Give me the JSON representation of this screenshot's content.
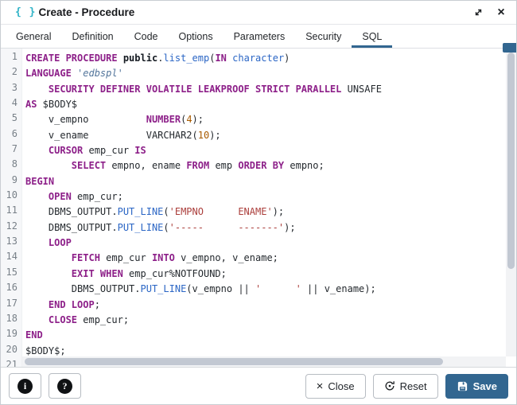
{
  "window": {
    "title": "Create - Procedure",
    "title_icon_glyph": "{ }",
    "close_icon_glyph": "×"
  },
  "tabs": {
    "active": "SQL",
    "items": [
      {
        "label": "General"
      },
      {
        "label": "Definition"
      },
      {
        "label": "Code"
      },
      {
        "label": "Options"
      },
      {
        "label": "Parameters"
      },
      {
        "label": "Security"
      },
      {
        "label": "SQL"
      }
    ]
  },
  "editor": {
    "language": "SQL",
    "lines": [
      {
        "n": 1,
        "seg": [
          [
            "kw",
            "CREATE PROCEDURE "
          ],
          [
            "def",
            "public"
          ],
          [
            "txt",
            "."
          ],
          [
            "fn",
            "list_emp"
          ],
          [
            "txt",
            "("
          ],
          [
            "kw",
            "IN"
          ],
          [
            "txt",
            " "
          ],
          [
            "fn",
            "character"
          ],
          [
            "txt",
            ")"
          ]
        ]
      },
      {
        "n": 2,
        "seg": [
          [
            "kw",
            "LANGUAGE "
          ],
          [
            "str2",
            "'edbspl'"
          ]
        ]
      },
      {
        "n": 3,
        "seg": [
          [
            "txt",
            "    "
          ],
          [
            "kw",
            "SECURITY DEFINER VOLATILE LEAKPROOF STRICT PARALLEL"
          ],
          [
            "txt",
            " UNSAFE"
          ]
        ]
      },
      {
        "n": 4,
        "seg": [
          [
            "kw",
            "AS"
          ],
          [
            "txt",
            " $BODY$"
          ]
        ]
      },
      {
        "n": 5,
        "seg": [
          [
            "txt",
            "    v_empno          "
          ],
          [
            "kw",
            "NUMBER"
          ],
          [
            "txt",
            "("
          ],
          [
            "num",
            "4"
          ],
          [
            "txt",
            ");"
          ]
        ]
      },
      {
        "n": 6,
        "seg": [
          [
            "txt",
            "    v_ename          VARCHAR2("
          ],
          [
            "num",
            "10"
          ],
          [
            "txt",
            ");"
          ]
        ]
      },
      {
        "n": 7,
        "seg": [
          [
            "txt",
            "    "
          ],
          [
            "kw",
            "CURSOR"
          ],
          [
            "txt",
            " emp_cur "
          ],
          [
            "kw",
            "IS"
          ]
        ]
      },
      {
        "n": 8,
        "seg": [
          [
            "txt",
            "        "
          ],
          [
            "kw",
            "SELECT"
          ],
          [
            "txt",
            " empno, ename "
          ],
          [
            "kw",
            "FROM"
          ],
          [
            "txt",
            " emp "
          ],
          [
            "kw",
            "ORDER BY"
          ],
          [
            "txt",
            " empno;"
          ]
        ]
      },
      {
        "n": 9,
        "seg": [
          [
            "kw",
            "BEGIN"
          ]
        ]
      },
      {
        "n": 10,
        "seg": [
          [
            "txt",
            "    "
          ],
          [
            "kw",
            "OPEN"
          ],
          [
            "txt",
            " emp_cur;"
          ]
        ]
      },
      {
        "n": 11,
        "seg": [
          [
            "txt",
            "    DBMS_OUTPUT."
          ],
          [
            "fn",
            "PUT_LINE"
          ],
          [
            "txt",
            "("
          ],
          [
            "str",
            "'EMPNO      ENAME'"
          ],
          [
            "txt",
            ");"
          ]
        ]
      },
      {
        "n": 12,
        "seg": [
          [
            "txt",
            "    DBMS_OUTPUT."
          ],
          [
            "fn",
            "PUT_LINE"
          ],
          [
            "txt",
            "("
          ],
          [
            "str",
            "'-----      -------'"
          ],
          [
            "txt",
            ");"
          ]
        ]
      },
      {
        "n": 13,
        "seg": [
          [
            "txt",
            "    "
          ],
          [
            "kw",
            "LOOP"
          ]
        ]
      },
      {
        "n": 14,
        "seg": [
          [
            "txt",
            "        "
          ],
          [
            "kw",
            "FETCH"
          ],
          [
            "txt",
            " emp_cur "
          ],
          [
            "kw",
            "INTO"
          ],
          [
            "txt",
            " v_empno, v_ename;"
          ]
        ]
      },
      {
        "n": 15,
        "seg": [
          [
            "txt",
            "        "
          ],
          [
            "kw",
            "EXIT WHEN"
          ],
          [
            "txt",
            " emp_cur%NOTFOUND;"
          ]
        ]
      },
      {
        "n": 16,
        "seg": [
          [
            "txt",
            "        DBMS_OUTPUT."
          ],
          [
            "fn",
            "PUT_LINE"
          ],
          [
            "txt",
            "(v_empno || "
          ],
          [
            "str",
            "'      '"
          ],
          [
            "txt",
            " || v_ename);"
          ]
        ]
      },
      {
        "n": 17,
        "seg": [
          [
            "txt",
            "    "
          ],
          [
            "kw",
            "END LOOP"
          ],
          [
            "txt",
            ";"
          ]
        ]
      },
      {
        "n": 18,
        "seg": [
          [
            "txt",
            "    "
          ],
          [
            "kw",
            "CLOSE"
          ],
          [
            "txt",
            " emp_cur;"
          ]
        ]
      },
      {
        "n": 19,
        "seg": [
          [
            "kw",
            "END"
          ]
        ]
      },
      {
        "n": 20,
        "seg": [
          [
            "txt",
            "$BODY$;"
          ]
        ]
      },
      {
        "n": 21,
        "seg": []
      }
    ]
  },
  "footer": {
    "info_icon_glyph": "i",
    "help_icon_glyph": "?",
    "close": {
      "label": "Close",
      "icon_glyph": "×"
    },
    "reset": {
      "label": "Reset"
    },
    "save": {
      "label": "Save"
    }
  },
  "theme": {
    "accent": "#326690",
    "kw": "#8d2089",
    "fn": "#2b66c5",
    "str": "#ab3e3b",
    "str2": "#53759b",
    "num": "#a85a00",
    "text": "#24292e",
    "linenum": "#788088",
    "title_icon_color": "#2fb3c7"
  }
}
